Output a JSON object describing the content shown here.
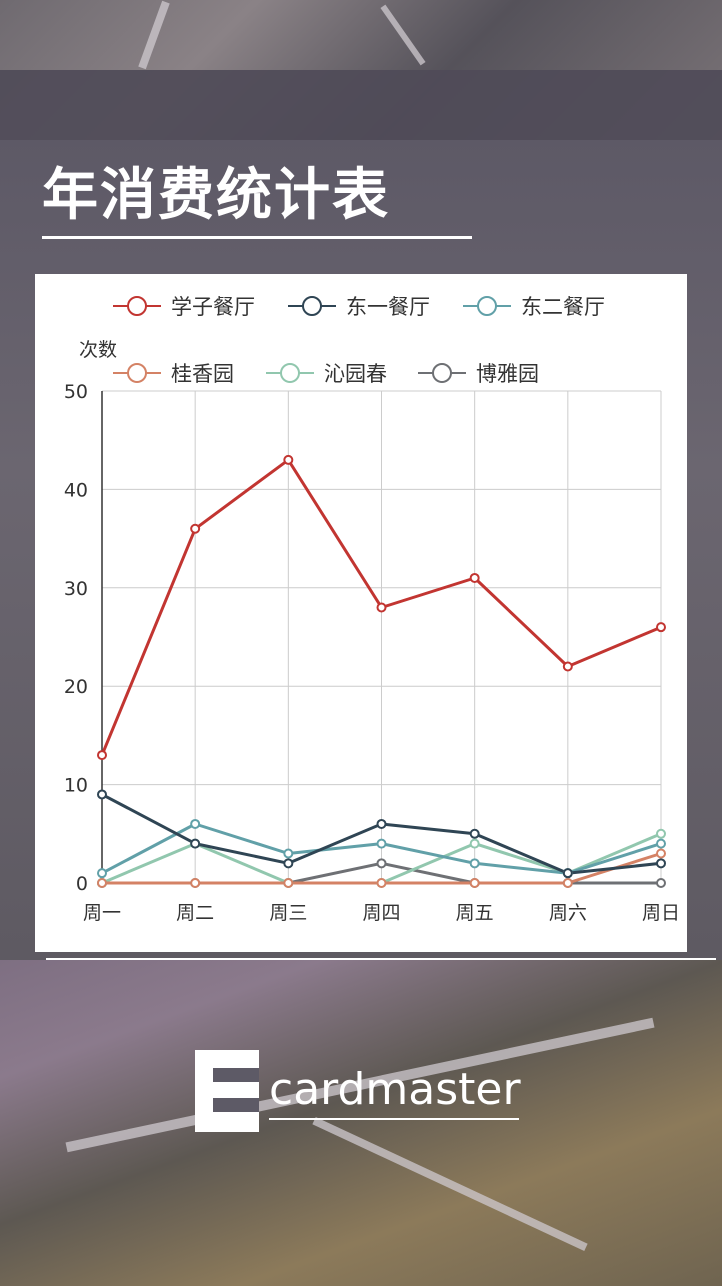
{
  "page": {
    "title": "年消费统计表",
    "brand_name": "cardmaster",
    "brand_logo_icon": "e-logo-icon"
  },
  "chart_data": {
    "type": "line",
    "ylabel": "次数",
    "xlabel": "",
    "ylim": [
      0,
      50
    ],
    "yticks": [
      0,
      10,
      20,
      30,
      40,
      50
    ],
    "categories": [
      "周一",
      "周二",
      "周三",
      "周四",
      "周五",
      "周六",
      "周日"
    ],
    "grid": true,
    "legend_position": "top",
    "series": [
      {
        "name": "学子餐厅",
        "color": "#c23531",
        "values": [
          13,
          36,
          43,
          28,
          31,
          22,
          26
        ]
      },
      {
        "name": "东一餐厅",
        "color": "#2f4554",
        "values": [
          9,
          4,
          2,
          6,
          5,
          1,
          2
        ]
      },
      {
        "name": "东二餐厅",
        "color": "#61a0a8",
        "values": [
          1,
          6,
          3,
          4,
          2,
          1,
          4
        ]
      },
      {
        "name": "桂香园",
        "color": "#d48265",
        "values": [
          0,
          0,
          0,
          0,
          0,
          0,
          3
        ]
      },
      {
        "name": "沁园春",
        "color": "#91c7ae",
        "values": [
          0,
          4,
          0,
          0,
          4,
          1,
          5
        ]
      },
      {
        "name": "博雅园",
        "color": "#6e7074",
        "values": [
          0,
          0,
          0,
          2,
          0,
          0,
          0
        ]
      }
    ]
  }
}
